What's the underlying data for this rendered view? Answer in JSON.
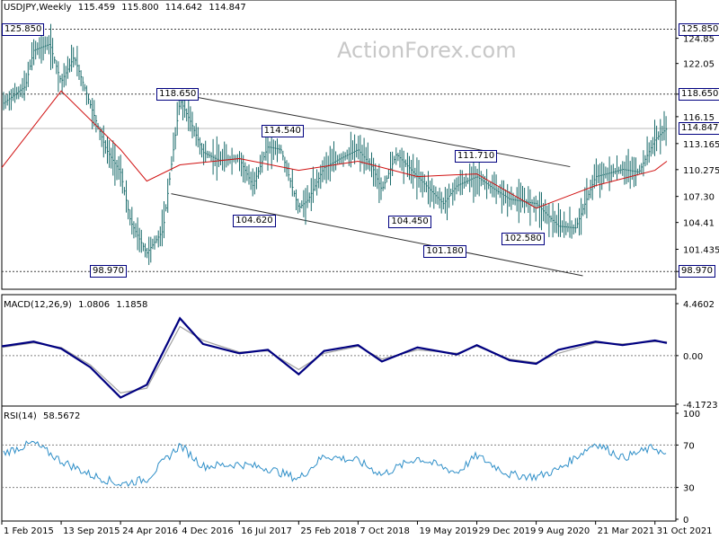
{
  "header": {
    "symbol": "USDJPY,Weekly",
    "open": "115.459",
    "high": "115.800",
    "low": "114.642",
    "close": "114.847"
  },
  "watermark": "ActionForex.com",
  "colors": {
    "price": "#1a6b6b",
    "ma": "#d01010",
    "macd": "#000080",
    "signal": "#a0a0a0",
    "rsi": "#2f8fc8",
    "level": "#404040",
    "box_border": "#000080",
    "axis": "#000000"
  },
  "chart_data": [
    {
      "type": "bar",
      "title": "USDJPY,Weekly",
      "ylim": [
        97.0,
        127.5
      ],
      "y_axis_ticks": [
        "124.85",
        "122.05",
        "118.650",
        "116.15",
        "113.165",
        "110.275",
        "107.30",
        "104.41",
        "101.435",
        "98.970"
      ],
      "price_labels": {
        "top": "125.850",
        "right_level": "118.650",
        "current": "114.847",
        "bottom": "98.970"
      },
      "horizontal_levels": [
        125.85,
        118.65,
        114.847,
        98.97
      ],
      "annotations": [
        {
          "text": "125.850",
          "x": "2015-06-01",
          "y": 125.85
        },
        {
          "text": "118.650",
          "x": "2016-11-20",
          "y": 118.65
        },
        {
          "text": "114.540",
          "x": "2017-12-20",
          "y": 114.54
        },
        {
          "text": "104.620",
          "x": "2017-09-05",
          "y": 104.62
        },
        {
          "text": "111.710",
          "x": "2019-12-20",
          "y": 111.71
        },
        {
          "text": "104.450",
          "x": "2019-04-15",
          "y": 104.45
        },
        {
          "text": "101.180",
          "x": "2019-08-25",
          "y": 101.18
        },
        {
          "text": "102.580",
          "x": "2020-06-15",
          "y": 102.58
        },
        {
          "text": "98.970",
          "x": "2016-06-01",
          "y": 98.97
        }
      ],
      "trendlines": [
        {
          "name": "upper channel",
          "from": {
            "x": "2016-12-04",
            "y": 118.65
          },
          "to": {
            "x": "2020-12-15",
            "y": 110.6
          }
        },
        {
          "name": "lower channel",
          "from": {
            "x": "2016-11-01",
            "y": 107.6
          },
          "to": {
            "x": "2021-02-01",
            "y": 98.5
          }
        }
      ],
      "series": [
        {
          "kind": "price_close",
          "x": [
            "2015-02-01",
            "2015-05-01",
            "2015-06-01",
            "2015-08-01",
            "2015-09-13",
            "2015-11-01",
            "2016-01-01",
            "2016-03-01",
            "2016-04-24",
            "2016-06-01",
            "2016-08-01",
            "2016-10-01",
            "2016-12-04",
            "2017-01-15",
            "2017-03-01",
            "2017-05-01",
            "2017-07-16",
            "2017-09-05",
            "2017-11-01",
            "2017-12-20",
            "2018-02-25",
            "2018-04-01",
            "2018-06-01",
            "2018-08-01",
            "2018-10-07",
            "2018-12-01",
            "2019-01-05",
            "2019-03-01",
            "2019-05-19",
            "2019-08-25",
            "2019-10-15",
            "2019-12-29",
            "2020-03-09",
            "2020-05-01",
            "2020-08-09",
            "2020-11-01",
            "2021-01-05",
            "2021-03-21",
            "2021-05-01",
            "2021-07-01",
            "2021-09-01",
            "2021-10-31",
            "2021-12-15"
          ],
          "y": [
            117.5,
            119.5,
            123.5,
            124.2,
            120.0,
            122.8,
            117.5,
            112.5,
            110.0,
            104.5,
            101.0,
            103.5,
            118.0,
            115.5,
            112.2,
            111.3,
            111.5,
            108.5,
            112.8,
            112.5,
            106.0,
            106.9,
            110.5,
            111.5,
            112.5,
            110.5,
            108.0,
            112.0,
            109.5,
            106.5,
            108.5,
            109.5,
            108.0,
            107.0,
            106.5,
            104.0,
            103.8,
            109.5,
            109.8,
            110.3,
            110.0,
            113.6,
            114.847
          ]
        },
        {
          "kind": "ma",
          "x": [
            "2015-02-01",
            "2015-09-13",
            "2016-04-24",
            "2016-08-01",
            "2016-12-04",
            "2017-07-16",
            "2018-02-25",
            "2018-10-07",
            "2019-05-19",
            "2019-12-29",
            "2020-08-09",
            "2021-03-21",
            "2021-10-31",
            "2021-12-15"
          ],
          "y": [
            110.5,
            119.0,
            112.5,
            109.0,
            110.8,
            111.5,
            110.2,
            111.2,
            109.5,
            109.8,
            106.0,
            108.5,
            110.2,
            111.2
          ]
        }
      ]
    },
    {
      "type": "line",
      "title": "MACD(12,26,9)",
      "values_label": [
        "1.0806",
        "1.1858"
      ],
      "ylim": [
        -4.1723,
        4.4602
      ],
      "y_axis_ticks": [
        "4.4602",
        "0.00",
        "-4.1723"
      ],
      "series": [
        {
          "name": "MACD",
          "x": [
            "2015-02-01",
            "2015-06-01",
            "2015-09-13",
            "2016-01-01",
            "2016-04-24",
            "2016-08-01",
            "2016-12-04",
            "2017-03-01",
            "2017-07-16",
            "2017-11-01",
            "2018-02-25",
            "2018-06-01",
            "2018-10-07",
            "2019-01-05",
            "2019-05-19",
            "2019-10-15",
            "2019-12-29",
            "2020-05-01",
            "2020-08-09",
            "2020-11-01",
            "2021-03-21",
            "2021-07-01",
            "2021-10-31",
            "2021-12-15"
          ],
          "y": [
            0.8,
            1.2,
            0.6,
            -1.0,
            -3.6,
            -2.5,
            3.2,
            1.0,
            0.2,
            0.5,
            -1.6,
            0.4,
            0.9,
            -0.5,
            0.7,
            0.1,
            0.9,
            -0.4,
            -0.7,
            0.5,
            1.2,
            0.9,
            1.3,
            1.08
          ]
        },
        {
          "name": "Signal",
          "x": [
            "2015-02-01",
            "2015-06-01",
            "2015-09-13",
            "2016-01-01",
            "2016-04-24",
            "2016-08-01",
            "2016-12-04",
            "2017-03-01",
            "2017-07-16",
            "2017-11-01",
            "2018-02-25",
            "2018-06-01",
            "2018-10-07",
            "2019-01-05",
            "2019-05-19",
            "2019-10-15",
            "2019-12-29",
            "2020-05-01",
            "2020-08-09",
            "2020-11-01",
            "2021-03-21",
            "2021-07-01",
            "2021-10-31",
            "2021-12-15"
          ],
          "y": [
            0.7,
            1.1,
            0.7,
            -0.8,
            -3.2,
            -2.8,
            2.5,
            1.3,
            0.3,
            0.4,
            -1.2,
            0.2,
            0.8,
            -0.3,
            0.5,
            0.2,
            0.8,
            -0.3,
            -0.6,
            0.2,
            1.1,
            1.0,
            1.2,
            1.19
          ]
        }
      ]
    },
    {
      "type": "line",
      "title": "RSI(14)",
      "values_label": [
        "58.5672"
      ],
      "ylim": [
        0,
        100
      ],
      "y_axis_ticks": [
        "100",
        "70",
        "30",
        "0"
      ],
      "reference_lines": [
        70,
        30
      ],
      "series": [
        {
          "name": "RSI",
          "x": [
            "2015-02-01",
            "2015-06-01",
            "2015-09-13",
            "2016-01-01",
            "2016-04-24",
            "2016-08-01",
            "2016-12-04",
            "2017-03-01",
            "2017-07-16",
            "2017-11-01",
            "2018-02-25",
            "2018-06-01",
            "2018-10-07",
            "2019-01-05",
            "2019-05-19",
            "2019-10-15",
            "2019-12-29",
            "2020-05-01",
            "2020-08-09",
            "2020-11-01",
            "2021-03-21",
            "2021-07-01",
            "2021-10-31",
            "2021-12-15"
          ],
          "y": [
            62,
            72,
            55,
            42,
            33,
            38,
            70,
            50,
            52,
            48,
            38,
            60,
            55,
            42,
            58,
            44,
            60,
            42,
            40,
            47,
            72,
            58,
            68,
            58.57
          ]
        }
      ]
    }
  ],
  "x_axis_labels": [
    {
      "label": "1 Feb 2015",
      "x": "2015-02-01"
    },
    {
      "label": "13 Sep 2015",
      "x": "2015-09-13"
    },
    {
      "label": "24 Apr 2016",
      "x": "2016-04-24"
    },
    {
      "label": "4 Dec 2016",
      "x": "2016-12-04"
    },
    {
      "label": "16 Jul 2017",
      "x": "2017-07-16"
    },
    {
      "label": "25 Feb 2018",
      "x": "2018-02-25"
    },
    {
      "label": "7 Oct 2018",
      "x": "2018-10-07"
    },
    {
      "label": "19 May 2019",
      "x": "2019-05-19"
    },
    {
      "label": "29 Dec 2019",
      "x": "2019-12-29"
    },
    {
      "label": "9 Aug 2020",
      "x": "2020-08-09"
    },
    {
      "label": "21 Mar 2021",
      "x": "2021-03-21"
    },
    {
      "label": "31 Oct 2021",
      "x": "2021-10-31"
    }
  ]
}
